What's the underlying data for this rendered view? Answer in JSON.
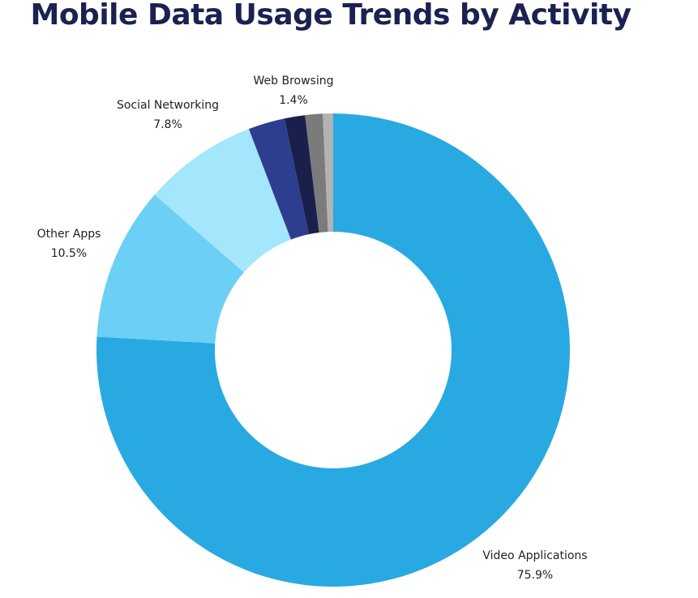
{
  "chart_data": {
    "type": "pie",
    "donut": true,
    "title": "Mobile Data Usage Trends by Activity",
    "slices": [
      {
        "label": "Video Applications",
        "value": 75.9,
        "value_label": "75.9%",
        "color": "#29a9e1"
      },
      {
        "label": "Other Apps",
        "value": 10.5,
        "value_label": "10.5%",
        "color": "#6ccff6"
      },
      {
        "label": "Social Networking",
        "value": 7.8,
        "value_label": "7.8%",
        "color": "#a4e6fc"
      },
      {
        "label": "",
        "value": 2.5,
        "value_label": "",
        "color": "#2e3e8e"
      },
      {
        "label": "Web Browsing",
        "value": 1.4,
        "value_label": "1.4%",
        "color": "#1b1f4c"
      },
      {
        "label": "",
        "value": 1.2,
        "value_label": "",
        "color": "#7b7b7b"
      },
      {
        "label": "",
        "value": 0.7,
        "value_label": "",
        "color": "#b3b3b3"
      }
    ],
    "legend": "none"
  }
}
